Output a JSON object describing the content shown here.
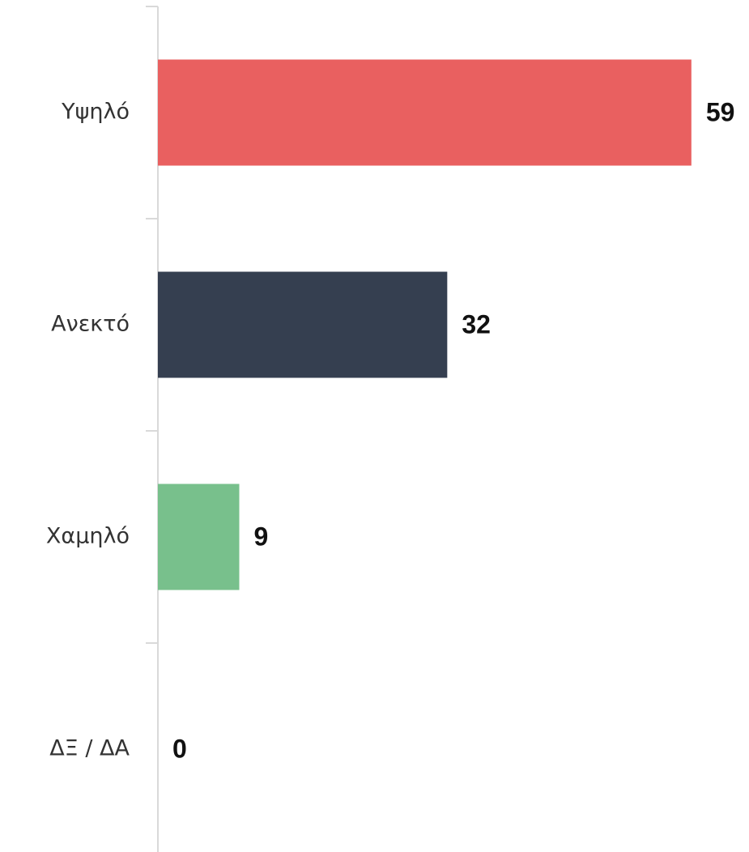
{
  "chart_data": {
    "type": "bar",
    "orientation": "horizontal",
    "categories": [
      "Υψηλό",
      "Ανεκτό",
      "Χαμηλό",
      "ΔΞ / ΔΑ"
    ],
    "values": [
      59,
      32,
      9,
      0
    ],
    "colors": [
      "#e96060",
      "#353f50",
      "#78c08c",
      null
    ],
    "xlim": [
      0,
      60
    ]
  }
}
